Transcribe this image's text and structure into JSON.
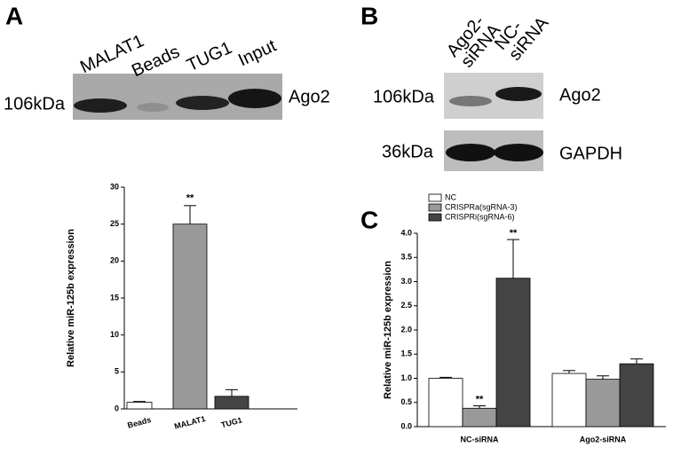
{
  "panels": [
    "A",
    "B",
    "C"
  ],
  "blot_a": {
    "lanes": [
      "MALAT1",
      "Beads",
      "TUG1",
      "Input"
    ],
    "marker": "106kDa",
    "protein": "Ago2"
  },
  "blot_b": {
    "lanes": [
      [
        "Ago2-",
        "siRNA"
      ],
      [
        "NC-",
        "siRNA"
      ]
    ],
    "markers": [
      "106kDa",
      "36kDa"
    ],
    "proteins": [
      "Ago2",
      "GAPDH"
    ]
  },
  "chart_data": [
    {
      "type": "bar",
      "ylabel": "Relative miR-125b expression",
      "categories": [
        "Beads",
        "MALAT1",
        "TUG1"
      ],
      "values": [
        0.9,
        25,
        1.7
      ],
      "errors": [
        0.1,
        2.5,
        0.9
      ],
      "colors": [
        "#ffffff",
        "#999999",
        "#444444"
      ],
      "ylim": [
        0,
        30
      ],
      "yticks": [
        0,
        5,
        10,
        15,
        20,
        25,
        30
      ],
      "annotations": [
        "**"
      ]
    },
    {
      "type": "grouped_bar",
      "ylabel": "Relative miR-125b expression",
      "categories": [
        "NC-siRNA",
        "Ago2-siRNA"
      ],
      "series": [
        {
          "name": "NC",
          "color": "#ffffff",
          "values": [
            1.0,
            1.1
          ],
          "errors": [
            0.02,
            0.06
          ]
        },
        {
          "name": "CRISPRa(sgRNA-3)",
          "color": "#999999",
          "values": [
            0.38,
            0.98
          ],
          "errors": [
            0.05,
            0.07
          ]
        },
        {
          "name": "CRISPRi(sgRNA-6)",
          "color": "#444444",
          "values": [
            3.07,
            1.3
          ],
          "errors": [
            0.8,
            0.1
          ]
        }
      ],
      "ylim": [
        0,
        4
      ],
      "yticks": [
        {
          "value": 0,
          "label": "0.0"
        },
        0.5,
        {
          "value": 1,
          "label": "1.0"
        },
        1.5,
        {
          "value": 2,
          "label": "2.0"
        },
        2.5,
        {
          "value": 3,
          "label": "3.0"
        },
        3.5,
        {
          "value": 4,
          "label": "4.0"
        }
      ],
      "legend": "upper left",
      "annotations": [
        "**",
        "**"
      ]
    }
  ]
}
